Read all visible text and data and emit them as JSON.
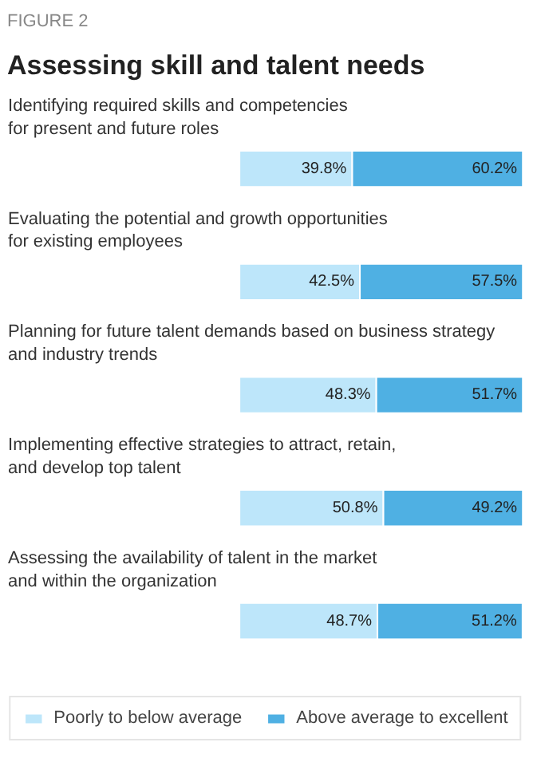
{
  "chart_data": {
    "type": "bar",
    "orientation": "horizontal",
    "stacked": true,
    "subtitle": "FIGURE 2",
    "title": "Assessing skill and talent needs",
    "categories": [
      "Identifying required skills and competencies\nfor present and future roles",
      "Evaluating the potential and growth opportunities\nfor existing employees",
      "Planning for future talent demands based on business strategy\nand industry trends",
      "Implementing effective strategies to attract, retain,\nand develop top talent",
      "Assessing the availability of talent in the market\nand within the organization"
    ],
    "series": [
      {
        "name": "Poorly to below average",
        "color": "#bde6fa",
        "values": [
          39.8,
          42.5,
          48.3,
          50.8,
          48.7
        ],
        "value_labels": [
          "39.8%",
          "42.5%",
          "48.3%",
          "50.8%",
          "48.7%"
        ]
      },
      {
        "name": "Above average to excellent",
        "color": "#4fb0e3",
        "values": [
          60.2,
          57.5,
          51.7,
          49.2,
          51.2
        ],
        "value_labels": [
          "60.2%",
          "57.5%",
          "51.7%",
          "49.2%",
          "51.2%"
        ]
      }
    ],
    "legend": "bottom"
  }
}
